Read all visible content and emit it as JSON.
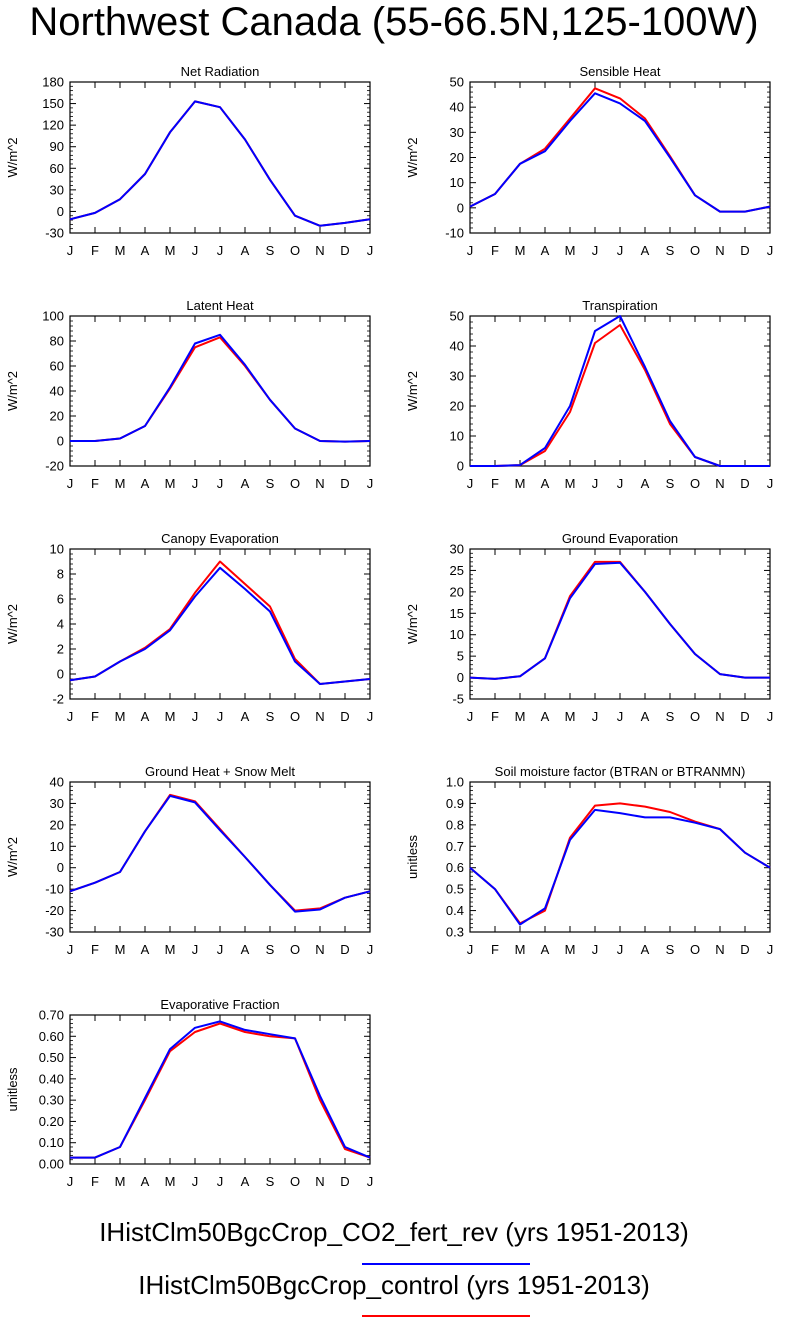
{
  "header": {
    "title": "Northwest Canada (55-66.5N,125-100W)"
  },
  "legend": [
    {
      "label": "IHistClm50BgcCrop_CO2_fert_rev (yrs 1951-2013)",
      "color": "#0000ff"
    },
    {
      "label": "IHistClm50BgcCrop_control (yrs 1951-2013)",
      "color": "#ff0000"
    }
  ],
  "months": [
    "J",
    "F",
    "M",
    "A",
    "M",
    "J",
    "J",
    "A",
    "S",
    "O",
    "N",
    "D",
    "J"
  ],
  "chart_data": [
    {
      "type": "line",
      "title": "Net Radiation",
      "ylabel": "W/m^2",
      "ylim": [
        -30,
        180
      ],
      "yticks": [
        -30,
        0,
        30,
        60,
        90,
        120,
        150,
        180
      ],
      "series": [
        {
          "color": "#ff0000",
          "values": [
            -11,
            -2,
            17,
            52,
            110,
            153,
            145,
            100,
            44,
            -6,
            -20,
            -16,
            -11
          ]
        },
        {
          "color": "#0000ff",
          "values": [
            -11,
            -2,
            17,
            52,
            110,
            153,
            145,
            100,
            44,
            -6,
            -20,
            -16,
            -11
          ]
        }
      ]
    },
    {
      "type": "line",
      "title": "Sensible Heat",
      "ylabel": "W/m^2",
      "ylim": [
        -10,
        50
      ],
      "yticks": [
        -10,
        0,
        10,
        20,
        30,
        40,
        50
      ],
      "series": [
        {
          "color": "#ff0000",
          "values": [
            0.5,
            5.5,
            17.5,
            23.5,
            35.5,
            47.5,
            43.5,
            35.5,
            20.5,
            5,
            -1.5,
            -1.5,
            0.5
          ]
        },
        {
          "color": "#0000ff",
          "values": [
            0.5,
            5.5,
            17.5,
            22.5,
            34.5,
            45.5,
            41.5,
            34.5,
            20,
            5,
            -1.5,
            -1.5,
            0.5
          ]
        }
      ]
    },
    {
      "type": "line",
      "title": "Latent Heat",
      "ylabel": "W/m^2",
      "ylim": [
        -20,
        100
      ],
      "yticks": [
        -20,
        0,
        20,
        40,
        60,
        80,
        100
      ],
      "series": [
        {
          "color": "#ff0000",
          "values": [
            0,
            0,
            2,
            12,
            42,
            75,
            83,
            60,
            33,
            10,
            0,
            -0.5,
            0
          ]
        },
        {
          "color": "#0000ff",
          "values": [
            0,
            0,
            2,
            12,
            43,
            78,
            85,
            61,
            33,
            10,
            0,
            -0.5,
            0
          ]
        }
      ]
    },
    {
      "type": "line",
      "title": "Transpiration",
      "ylabel": "W/m^2",
      "ylim": [
        0,
        50
      ],
      "yticks": [
        0,
        10,
        20,
        30,
        40,
        50
      ],
      "series": [
        {
          "color": "#ff0000",
          "values": [
            0,
            0,
            0.3,
            5,
            18,
            41,
            47,
            32,
            14,
            3,
            0,
            0,
            0
          ]
        },
        {
          "color": "#0000ff",
          "values": [
            0,
            0,
            0.3,
            6,
            20,
            45,
            50,
            33,
            15,
            3,
            0,
            0,
            0
          ]
        }
      ]
    },
    {
      "type": "line",
      "title": "Canopy Evaporation",
      "ylabel": "W/m^2",
      "ylim": [
        -2,
        10
      ],
      "yticks": [
        -2,
        0,
        2,
        4,
        6,
        8,
        10
      ],
      "series": [
        {
          "color": "#ff0000",
          "values": [
            -0.5,
            -0.2,
            1,
            2.1,
            3.6,
            6.5,
            9,
            7.2,
            5.4,
            1.2,
            -0.8,
            -0.6,
            -0.4
          ]
        },
        {
          "color": "#0000ff",
          "values": [
            -0.5,
            -0.2,
            1,
            2,
            3.5,
            6.2,
            8.5,
            6.8,
            5,
            1,
            -0.8,
            -0.6,
            -0.4
          ]
        }
      ]
    },
    {
      "type": "line",
      "title": "Ground Evaporation",
      "ylabel": "W/m^2",
      "ylim": [
        -5,
        30
      ],
      "yticks": [
        -5,
        0,
        5,
        10,
        15,
        20,
        25,
        30
      ],
      "series": [
        {
          "color": "#ff0000",
          "values": [
            0,
            -0.3,
            0.3,
            4.5,
            19,
            27,
            27,
            20,
            12.5,
            5.5,
            0.8,
            0,
            0
          ]
        },
        {
          "color": "#0000ff",
          "values": [
            0,
            -0.3,
            0.3,
            4.5,
            18.5,
            26.5,
            26.8,
            20,
            12.5,
            5.5,
            0.8,
            0,
            0
          ]
        }
      ]
    },
    {
      "type": "line",
      "title": "Ground Heat + Snow Melt",
      "ylabel": "W/m^2",
      "ylim": [
        -30,
        40
      ],
      "yticks": [
        -30,
        -20,
        -10,
        0,
        10,
        20,
        30,
        40
      ],
      "series": [
        {
          "color": "#ff0000",
          "values": [
            -11,
            -7,
            -2,
            17,
            34,
            31,
            18,
            5,
            -8,
            -20,
            -19,
            -14,
            -11
          ]
        },
        {
          "color": "#0000ff",
          "values": [
            -11,
            -7,
            -2,
            17,
            33.5,
            30.5,
            17.5,
            5,
            -8,
            -20.5,
            -19.5,
            -14,
            -11
          ]
        }
      ]
    },
    {
      "type": "line",
      "title": "Soil moisture factor (BTRAN or BTRANMN)",
      "ylabel": "unitless",
      "ylim": [
        0.3,
        1.0
      ],
      "yticks": [
        0.3,
        0.4,
        0.5,
        0.6,
        0.7,
        0.8,
        0.9,
        1.0
      ],
      "ydecimals": 1,
      "series": [
        {
          "color": "#ff0000",
          "values": [
            0.6,
            0.5,
            0.34,
            0.4,
            0.74,
            0.89,
            0.9,
            0.885,
            0.86,
            0.815,
            0.78,
            0.67,
            0.6
          ]
        },
        {
          "color": "#0000ff",
          "values": [
            0.6,
            0.5,
            0.335,
            0.41,
            0.73,
            0.87,
            0.855,
            0.835,
            0.835,
            0.81,
            0.78,
            0.67,
            0.6
          ]
        }
      ]
    },
    {
      "type": "line",
      "title": "Evaporative Fraction",
      "ylabel": "unitless",
      "ylim": [
        0.0,
        0.7
      ],
      "yticks": [
        0.0,
        0.1,
        0.2,
        0.3,
        0.4,
        0.5,
        0.6,
        0.7
      ],
      "ydecimals": 2,
      "series": [
        {
          "color": "#ff0000",
          "values": [
            0.03,
            0.03,
            0.08,
            0.3,
            0.53,
            0.62,
            0.66,
            0.62,
            0.6,
            0.59,
            0.3,
            0.07,
            0.03
          ]
        },
        {
          "color": "#0000ff",
          "values": [
            0.03,
            0.03,
            0.08,
            0.31,
            0.54,
            0.64,
            0.67,
            0.63,
            0.61,
            0.59,
            0.32,
            0.08,
            0.03
          ]
        }
      ]
    }
  ]
}
